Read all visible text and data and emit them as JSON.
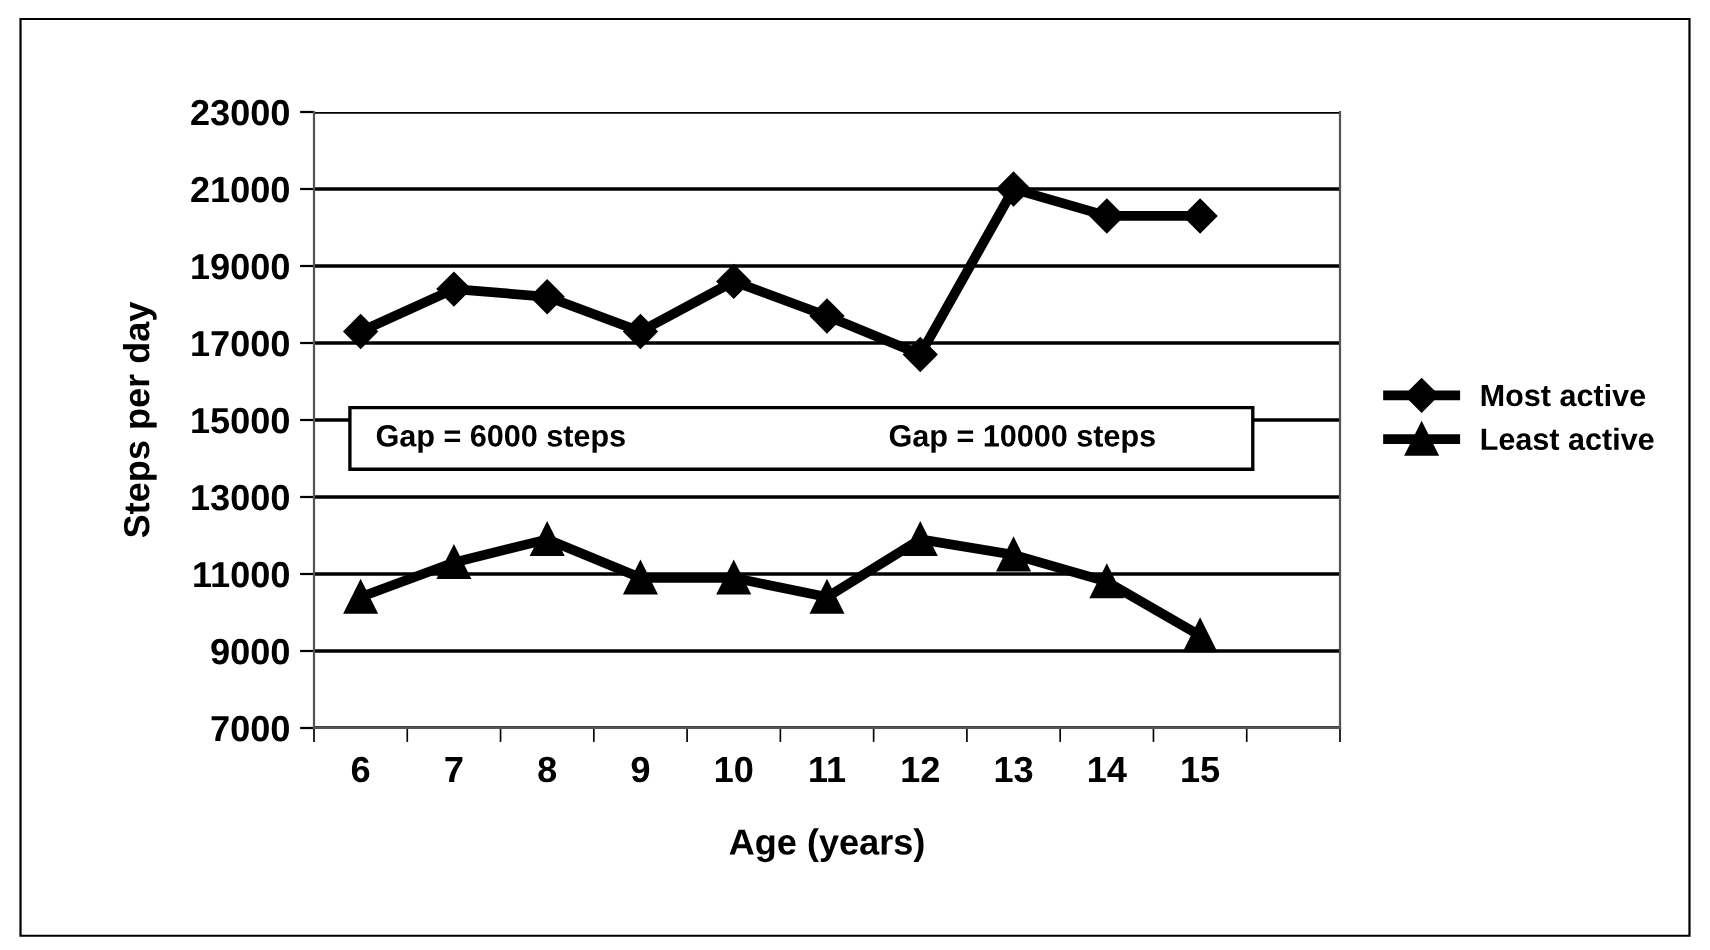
{
  "chart_data": {
    "type": "line",
    "xlabel": "Age (years)",
    "ylabel": "Steps per day",
    "categories": [
      "6",
      "7",
      "8",
      "9",
      "10",
      "11",
      "12",
      "13",
      "14",
      "15",
      null
    ],
    "series": [
      {
        "name": "Most active",
        "color": "#000000",
        "marker": "diamond",
        "values": [
          17300,
          18400,
          18200,
          17300,
          18600,
          17700,
          16700,
          21000,
          20300,
          20300,
          null
        ]
      },
      {
        "name": "Least active",
        "color": "#000000",
        "marker": "triangle",
        "values": [
          10400,
          11300,
          11900,
          10900,
          10900,
          10400,
          11900,
          11500,
          10800,
          9400,
          null
        ]
      }
    ],
    "annotations": [
      "Gap = 6000 steps",
      "Gap = 10000 steps"
    ],
    "ylim": [
      7000,
      23000
    ],
    "yticks": [
      7000,
      9000,
      11000,
      13000,
      15000,
      17000,
      19000,
      21000,
      23000
    ],
    "grid": "y",
    "legend": "right",
    "line_style": "solid"
  }
}
